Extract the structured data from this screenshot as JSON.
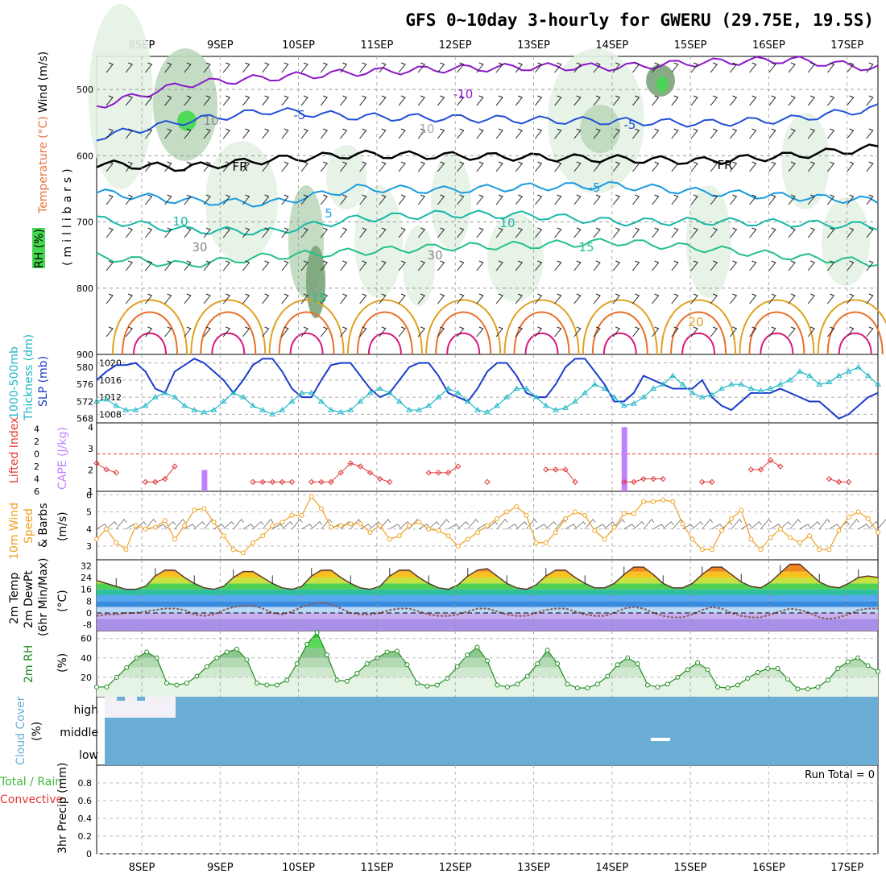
{
  "title": "GFS 0~10day 3-hourly for GWERU (29.75E, 19.5S)",
  "dates": [
    "8SEP",
    "9SEP",
    "10SEP",
    "11SEP",
    "12SEP",
    "13SEP",
    "14SEP",
    "15SEP",
    "16SEP",
    "17SEP"
  ],
  "run_total": "Run Total = 0",
  "colors": {
    "purple": "#8a17c8",
    "blue": "#1f4fd8",
    "lightblue": "#1a9be0",
    "teal": "#17b8a8",
    "seagreen": "#23c08a",
    "gold": "#e0a020",
    "orange": "#e8702a",
    "magenta": "#d8187e",
    "rh_pale": "#e4f2e4",
    "rh_mid": "#bcd8bc",
    "rh_dark": "#7aa47a",
    "rh_bright": "#45d84e",
    "slp": "#1a3ccc",
    "thick": "#22b8c8",
    "li": "#e03838",
    "cape": "#c080ff",
    "wind": "#f0a020",
    "cloud": "#6aaed6",
    "rh2m": "#1e8c1e",
    "dew": "#8a5a5a"
  },
  "panels": {
    "upper": {
      "labels": {
        "rh": "RH (%)",
        "temp": "Temperature (°C)",
        "wind": "Wind (m/s)",
        "mb": "(millibars)"
      },
      "contour_labels": [
        "-10",
        "-5",
        "-5",
        "FR",
        "FR",
        "-5",
        "5",
        "10",
        "10",
        "15",
        "15",
        "20",
        "10",
        "30",
        "10",
        "30"
      ]
    },
    "slp": {
      "labels": {
        "thick": "1000-500mb",
        "thick2": "Thickness (dm)",
        "slp": "SLP (mb)"
      }
    },
    "li": {
      "labels": {
        "li": "Lifted Index",
        "cape": "CAPE (J/kg)"
      }
    },
    "wind": {
      "labels": {
        "w1": "10m Wind",
        "w2": "Speed",
        "w3": "& Barbs",
        "unit": "(m/s)"
      }
    },
    "temp": {
      "labels": {
        "t1": "2m Temp",
        "t2": "2m DewPt",
        "t3": "(6hr Min/Max)",
        "unit": "(°C)"
      }
    },
    "rh2m": {
      "labels": {
        "rh": "2m RH",
        "unit": "(%)"
      }
    },
    "cloud": {
      "labels": {
        "c1": "Cloud Cover",
        "unit": "(%)",
        "high": "high",
        "middle": "middle",
        "low": "low"
      }
    },
    "precip": {
      "labels": {
        "p1": "Total / Rain",
        "p2": "Convective",
        "p3": "3hr Precip (mm)"
      }
    }
  },
  "chart_data": [
    {
      "type": "line",
      "panel": "upper-air temperature, RH and wind",
      "x": [
        "8SEP",
        "9SEP",
        "10SEP",
        "11SEP",
        "12SEP",
        "13SEP",
        "14SEP",
        "15SEP",
        "16SEP",
        "17SEP"
      ],
      "ylabel": "millibars",
      "yticks": [
        500,
        600,
        700,
        800,
        900
      ],
      "ylim": [
        900,
        450
      ],
      "series": [
        {
          "name": "-10",
          "values": [
            525,
            492,
            482,
            474,
            469,
            466,
            466,
            459,
            455,
            468
          ]
        },
        {
          "name": "-5",
          "values": [
            572,
            548,
            532,
            541,
            543,
            546,
            548,
            551,
            545,
            528
          ]
        },
        {
          "name": "FR",
          "values": [
            612,
            618,
            606,
            598,
            600,
            602,
            605,
            608,
            600,
            588
          ]
        },
        {
          "name": "5",
          "values": [
            655,
            668,
            672,
            649,
            652,
            647,
            645,
            655,
            662,
            668
          ]
        },
        {
          "name": "10",
          "values": [
            696,
            712,
            715,
            695,
            688,
            690,
            700,
            699,
            702,
            706
          ]
        },
        {
          "name": "15",
          "values": [
            752,
            765,
            752,
            745,
            738,
            735,
            730,
            740,
            752,
            762
          ]
        }
      ]
    },
    {
      "type": "line",
      "panel": "SLP and thickness",
      "series": [
        {
          "name": "SLP (mb)",
          "ylim": [
            1006,
            1022
          ],
          "yticks": [
            1008,
            1012,
            1016,
            1020
          ],
          "values": [
            1016,
            1018,
            1019.5,
            1019.5,
            1020,
            1018,
            1014,
            1013,
            1018,
            1019.5,
            1021,
            1020,
            1018,
            1016,
            1013,
            1016,
            1019.5,
            1021,
            1021,
            1018,
            1014,
            1012,
            1012,
            1016,
            1019.5,
            1020,
            1020,
            1017,
            1014,
            1012,
            1013,
            1016,
            1019,
            1020,
            1020,
            1017,
            1013,
            1012,
            1011,
            1014,
            1018,
            1020,
            1020,
            1017,
            1013,
            1012,
            1012,
            1015,
            1019,
            1021,
            1021,
            1018,
            1015,
            1011,
            1011,
            1013,
            1017,
            1016,
            1015,
            1014,
            1014,
            1014,
            1016,
            1012,
            1010,
            1009,
            1011,
            1013,
            1013,
            1013,
            1014,
            1013,
            1012,
            1011,
            1011,
            1009,
            1007,
            1008,
            1010,
            1012,
            1013
          ]
        },
        {
          "name": "1000-500mb Thickness (dm)",
          "ylim": [
            567,
            583
          ],
          "yticks": [
            568,
            572,
            576,
            580
          ],
          "values": [
            572,
            572.5,
            571,
            570,
            570,
            571,
            573,
            574,
            573,
            571,
            570,
            569.5,
            570,
            572,
            574,
            573,
            571,
            570,
            569,
            570,
            572,
            574,
            574,
            572,
            570,
            569.5,
            570,
            572,
            574,
            575,
            574,
            572,
            570,
            570,
            571,
            573,
            575,
            574,
            572,
            570,
            569.5,
            571,
            573,
            575,
            575,
            573,
            571,
            570,
            570.5,
            572,
            574,
            576,
            575,
            573,
            571,
            571.5,
            573,
            575,
            576,
            578,
            576,
            574,
            573,
            573.5,
            575,
            576,
            576,
            575,
            574.5,
            575,
            576,
            577,
            579,
            578,
            576,
            576.5,
            578,
            579,
            580,
            578,
            576
          ]
        }
      ]
    },
    {
      "type": "line",
      "panel": "Lifted Index and CAPE",
      "series": [
        {
          "name": "Lifted Index",
          "yticks": [
            -4,
            -2,
            0,
            2,
            4,
            6
          ],
          "ylim": [
            -5,
            6
          ],
          "values": [
            1.5,
            2.5,
            3,
            null,
            null,
            4.5,
            4.5,
            4,
            2,
            null,
            null,
            null,
            null,
            null,
            null,
            null,
            4.5,
            4.5,
            4.5,
            4.5,
            4.5,
            null,
            4.5,
            4.5,
            4.5,
            3,
            1.5,
            2,
            3,
            4,
            4.5,
            null,
            null,
            null,
            3,
            3,
            3,
            2,
            null,
            null,
            4.5,
            null,
            null,
            null,
            null,
            null,
            2.5,
            2.5,
            2.5,
            4.5,
            null,
            null,
            null,
            null,
            4.5,
            4.5,
            4,
            4,
            4,
            null,
            null,
            null,
            4.5,
            4.5,
            null,
            null,
            null,
            2.5,
            2.5,
            1,
            2,
            null,
            null,
            null,
            null,
            4,
            4.5,
            4.5,
            null,
            null,
            null
          ]
        },
        {
          "name": "CAPE (J/kg)",
          "yticks": [
            1,
            2,
            3,
            4
          ],
          "ylim": [
            1,
            4.2
          ],
          "bars": [
            {
              "x": 11,
              "value": 2
            },
            {
              "x": 54,
              "value": 4
            }
          ]
        }
      ]
    },
    {
      "type": "line",
      "panel": "10m Wind Speed",
      "ylabel": "(m/s)",
      "yticks": [
        3,
        4,
        5,
        6
      ],
      "ylim": [
        2.2,
        6.2
      ],
      "values": [
        3.4,
        4,
        3.2,
        2.8,
        4.2,
        4,
        4.1,
        4.5,
        3.4,
        4.2,
        5.1,
        5.2,
        4.4,
        3.6,
        2.8,
        2.6,
        3.2,
        3.6,
        4.2,
        4.4,
        4.8,
        4.8,
        5.9,
        5.2,
        4.1,
        4.2,
        4.3,
        4.3,
        3.8,
        4.2,
        3.4,
        3.6,
        4.2,
        4.4,
        4,
        3.9,
        3.6,
        3,
        3.4,
        3.8,
        4.2,
        4.6,
        5,
        5.3,
        4.8,
        3.2,
        3.2,
        3.8,
        4.6,
        5,
        4.8,
        3.9,
        3.4,
        4.1,
        4.9,
        4.9,
        5.6,
        5.6,
        5.7,
        5.6,
        4.3,
        3.4,
        2.8,
        2.8,
        3.9,
        4.6,
        5.1,
        3.4,
        2.8,
        3.5,
        4,
        3.5,
        3.2,
        3.6,
        2.8,
        2.8,
        3.9,
        4.7,
        5,
        4.6,
        3.8
      ]
    },
    {
      "type": "area",
      "panel": "2m Temp and DewPt",
      "ylabel": "(°C)",
      "yticks": [
        -8,
        0,
        8,
        16,
        24,
        32
      ],
      "ylim": [
        -12,
        36
      ],
      "series": [
        {
          "name": "2m Temp",
          "values": [
            22,
            20,
            18,
            16,
            16,
            18,
            25,
            29,
            29,
            24,
            20,
            17,
            16,
            18,
            24,
            28,
            28,
            24,
            20,
            17,
            16,
            18,
            25,
            29,
            29,
            24,
            20,
            17,
            16,
            18,
            25,
            29,
            29,
            24,
            20,
            17,
            16,
            19,
            25,
            29,
            30,
            25,
            20,
            17,
            16,
            19,
            25,
            29,
            29,
            24,
            20,
            17,
            17,
            20,
            26,
            31,
            31,
            26,
            20,
            17,
            17,
            20,
            26,
            31,
            31,
            26,
            21,
            18,
            17,
            21,
            27,
            33,
            33,
            27,
            21,
            18,
            17,
            20,
            24,
            25,
            24
          ]
        },
        {
          "name": "2m DewPt",
          "values": [
            -2,
            -1,
            -1,
            0,
            0,
            1,
            2,
            3,
            3,
            2,
            -1,
            -2,
            -1,
            2,
            4,
            5,
            5,
            3,
            0,
            -1,
            1,
            4,
            6,
            7,
            6,
            3,
            0,
            -1,
            -1,
            0,
            2,
            3,
            3,
            1,
            -1,
            -2,
            -2,
            -1,
            1,
            3,
            3,
            1,
            -1,
            -2,
            -2,
            0,
            2,
            3,
            3,
            1,
            -1,
            -2,
            -2,
            0,
            3,
            4,
            3,
            0,
            -2,
            -3,
            -3,
            -1,
            2,
            4,
            3,
            0,
            -2,
            -3,
            -3,
            -1,
            1,
            3,
            2,
            0,
            -3,
            -4,
            -3,
            -1,
            2,
            3,
            3
          ]
        }
      ]
    },
    {
      "type": "area",
      "panel": "2m RH",
      "ylabel": "(%)",
      "yticks": [
        20,
        40,
        60
      ],
      "ylim": [
        0,
        68
      ],
      "values": [
        10,
        10,
        20,
        30,
        40,
        46,
        40,
        14,
        12,
        14,
        21,
        31,
        40,
        46,
        49,
        38,
        14,
        12,
        12,
        17,
        34,
        54,
        66,
        43,
        17,
        16,
        24,
        34,
        40,
        46,
        47,
        33,
        14,
        11,
        12,
        19,
        31,
        43,
        51,
        37,
        12,
        10,
        13,
        21,
        34,
        48,
        34,
        13,
        9,
        9,
        13,
        21,
        33,
        40,
        34,
        12,
        10,
        13,
        20,
        28,
        35,
        28,
        10,
        9,
        12,
        19,
        25,
        29,
        29,
        18,
        8,
        8,
        10,
        17,
        29,
        36,
        40,
        32,
        26
      ]
    },
    {
      "type": "heatmap",
      "panel": "Cloud Cover",
      "rows": [
        "high",
        "middle",
        "low"
      ],
      "note": "near 100% coverage throughout except first day"
    },
    {
      "type": "bar",
      "panel": "3hr Precip",
      "ylabel": "3hr Precip (mm)",
      "yticks": [
        0,
        0.2,
        0.4,
        0.6,
        0.8
      ],
      "ylim": [
        0,
        1
      ],
      "values": [],
      "annotation": "Run Total = 0"
    }
  ]
}
